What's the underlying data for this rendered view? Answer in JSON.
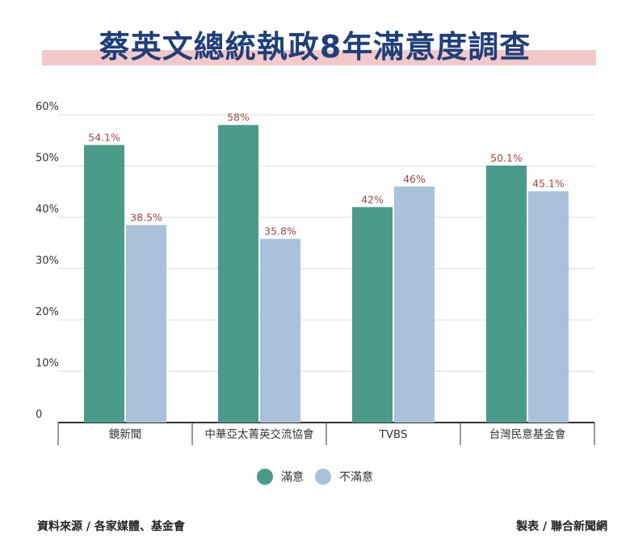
{
  "colors": {
    "satisfied": "#4a9b89",
    "dissatisfied": "#a9c2d9",
    "label": "#a04444",
    "title": "#1f3f7a",
    "title_band": "#f3c8c9",
    "grid": "#dddddd",
    "axis": "#333333",
    "tick": "#333333"
  },
  "chart_data": {
    "type": "bar",
    "title": "蔡英文總統執政8年滿意度調查",
    "categories": [
      "鏡新聞",
      "中華亞太菁英交流協會",
      "TVBS",
      "台灣民意基金會"
    ],
    "series": [
      {
        "name": "滿意",
        "values": [
          54.1,
          58,
          42,
          50.1
        ],
        "labels": [
          "54.1%",
          "58%",
          "42%",
          "50.1%"
        ]
      },
      {
        "name": "不滿意",
        "values": [
          38.5,
          35.8,
          46,
          45.1
        ],
        "labels": [
          "38.5%",
          "35.8%",
          "46%",
          "45.1%"
        ]
      }
    ],
    "ylim": [
      0,
      60
    ],
    "yticks": [
      0,
      10,
      20,
      30,
      40,
      50,
      60
    ],
    "ytick_labels": [
      "0",
      "10%",
      "20%",
      "30%",
      "40%",
      "50%",
      "60%"
    ],
    "grid": true,
    "legend_position": "bottom-center"
  },
  "legend": [
    {
      "label": "滿意"
    },
    {
      "label": "不滿意"
    }
  ],
  "footer": {
    "source": "資料來源 / 各家媒體、基金會",
    "credit": "製表 / 聯合新聞網"
  }
}
